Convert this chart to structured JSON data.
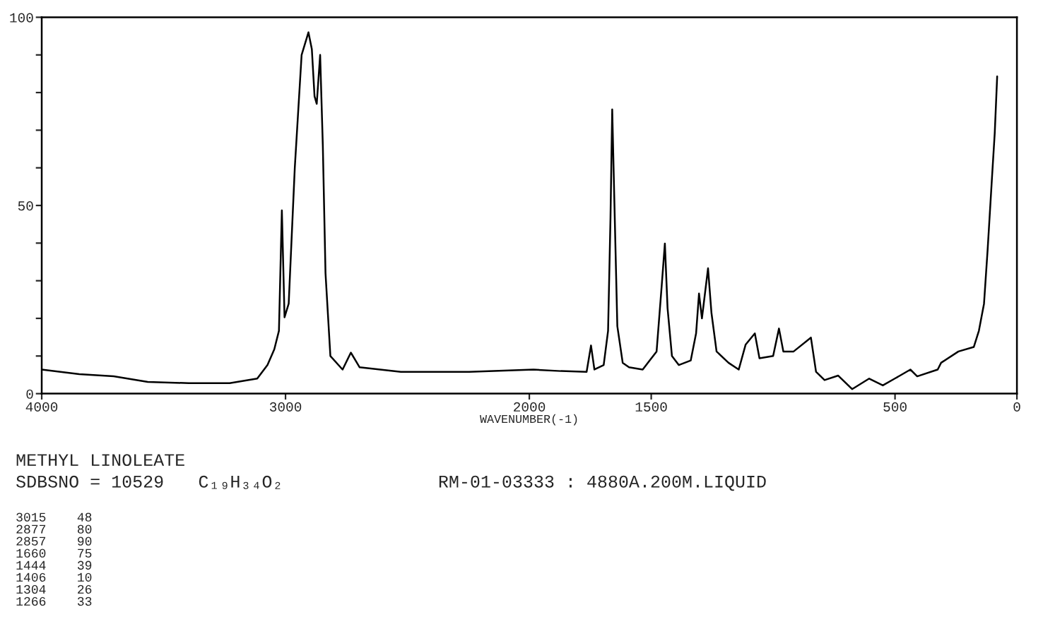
{
  "chart_data": {
    "type": "line",
    "xlabel": "WAVENUMBER(-1)",
    "x": [
      4000,
      3846,
      3705,
      3565,
      3397,
      3229,
      3116,
      3074,
      3046,
      3027,
      3015,
      3004,
      2987,
      2962,
      2934,
      2906,
      2892,
      2881,
      2872,
      2858,
      2847,
      2836,
      2816,
      2766,
      2732,
      2696,
      2527,
      2247,
      1983,
      1871,
      1765,
      1747,
      1733,
      1695,
      1677,
      1667,
      1660,
      1651,
      1639,
      1617,
      1591,
      1535,
      1478,
      1457,
      1444,
      1433,
      1415,
      1387,
      1338,
      1316,
      1304,
      1292,
      1267,
      1253,
      1232,
      1183,
      1141,
      1113,
      1075,
      1056,
      1000,
      976,
      958,
      916,
      845,
      824,
      789,
      733,
      676,
      606,
      550,
      501,
      437,
      409,
      325,
      311,
      240,
      177,
      156,
      135,
      120,
      102,
      91,
      81
    ],
    "series": [
      {
        "color": "#000000",
        "values": [
          6.4,
          5.2,
          4.6,
          3.1,
          2.8,
          2.8,
          4.0,
          7.6,
          11.8,
          16.7,
          48.7,
          20.3,
          23.9,
          60,
          90,
          96,
          91.5,
          79,
          77,
          90,
          66,
          32,
          10,
          6.4,
          10.9,
          7,
          5.8,
          5.8,
          6.4,
          6,
          5.8,
          12.8,
          6.4,
          7.6,
          16.7,
          46.9,
          75.5,
          50.6,
          17.9,
          8.2,
          7,
          6.4,
          11.2,
          28.7,
          39.9,
          22.7,
          10,
          7.6,
          8.8,
          16,
          26.6,
          20,
          33.3,
          21.5,
          11.2,
          8.2,
          6.4,
          13,
          16,
          9.4,
          10,
          17.3,
          11.2,
          11.2,
          14.9,
          5.8,
          3.6,
          4.8,
          1.2,
          4,
          2.2,
          4,
          6.4,
          4.6,
          6.4,
          8.2,
          11.2,
          12.4,
          16.7,
          23.9,
          38.4,
          57.7,
          69.2,
          84.3
        ]
      }
    ],
    "xlim": [
      4000,
      0
    ],
    "xticks": [
      4000,
      3000,
      2000,
      1500,
      500,
      0
    ],
    "ylim": [
      0,
      100
    ],
    "yticks": [
      0,
      {
        "value": 10,
        "label": null
      },
      {
        "value": 20,
        "label": null
      },
      {
        "value": 30,
        "label": null
      },
      {
        "value": 40,
        "label": null
      },
      50,
      {
        "value": 60,
        "label": null
      },
      {
        "value": 70,
        "label": null
      },
      {
        "value": 80,
        "label": null
      },
      {
        "value": 90,
        "label": null
      },
      100
    ],
    "grid": false,
    "legend": false,
    "marker": "none",
    "line_style": "solid",
    "annotations": [
      "METHYL LINOLEATE",
      "SDBSNO = 10529",
      "C₁₉H₃₄O₂",
      "RM-01-03333 : 4880A.200M.LIQUID",
      "3015    48",
      "2877    80",
      "2857    90",
      "1660    75",
      "1444    39",
      "1406    10",
      "1304    26",
      "1266    33"
    ]
  }
}
